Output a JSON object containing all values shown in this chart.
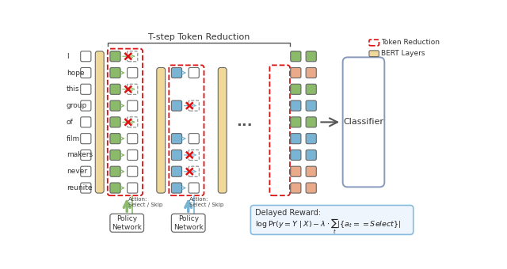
{
  "title": "T-step Token Reduction",
  "words": [
    "I",
    "hope",
    "this",
    "group",
    "of",
    "film",
    "makers",
    "never",
    "reunite"
  ],
  "green_color": "#8aba6a",
  "blue_color": "#7ab4d4",
  "orange_color": "#f0d898",
  "salmon_color": "#e8aa88",
  "bg_color": "#ffffff",
  "red_color": "#dd1111",
  "box_edge": "#666666",
  "reward_box_edge": "#88bbdd",
  "green_skip_rows": [
    0,
    2,
    4
  ],
  "blue_skip_rows": [
    1,
    3,
    4
  ],
  "final_colors": [
    "green",
    "salmon",
    "green",
    "blue",
    "green",
    "blue",
    "blue",
    "salmon",
    "salmon"
  ],
  "final2_colors": [
    "green",
    "salmon",
    "green",
    "blue",
    "green",
    "blue",
    "blue",
    "salmon",
    "salmon"
  ]
}
